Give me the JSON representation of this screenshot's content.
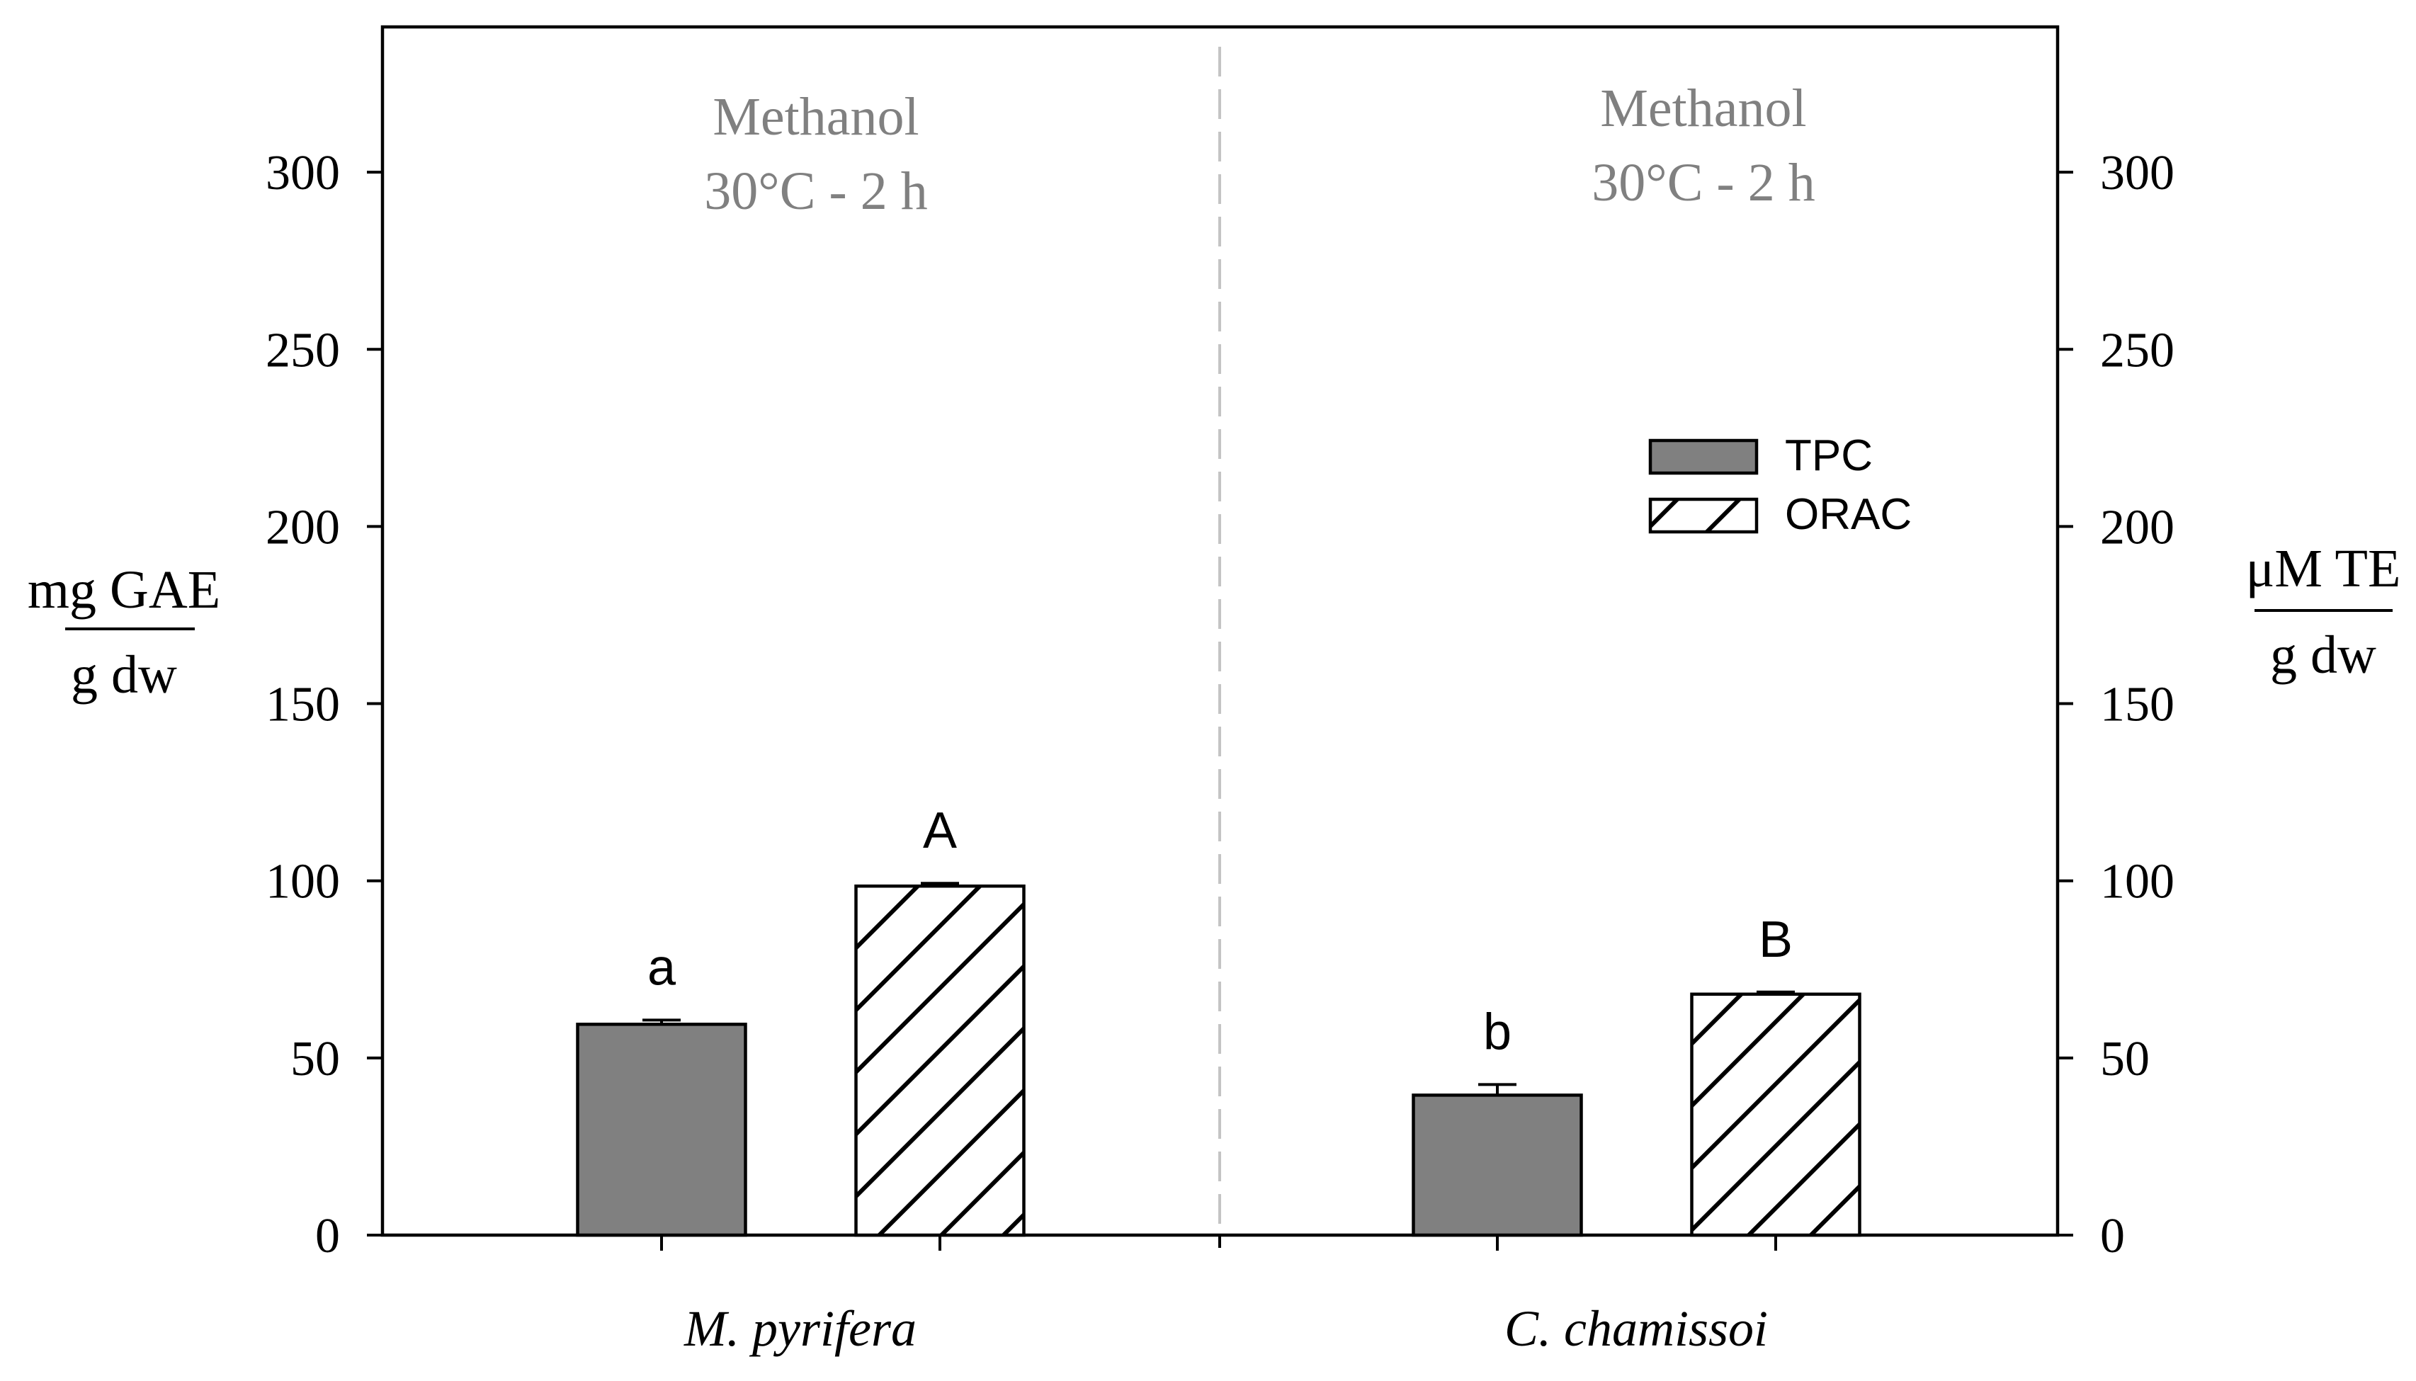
{
  "chart_data": {
    "type": "bar",
    "categories": [
      "M. pyrifera",
      "C. chamissoi"
    ],
    "series": [
      {
        "name": "TPC",
        "values": [
          59.5,
          39.5
        ],
        "errors": [
          1.2,
          3.0
        ],
        "letters": [
          "a",
          "b"
        ],
        "color": "#808080",
        "pattern": "solid"
      },
      {
        "name": "ORAC",
        "values": [
          98.5,
          68.0
        ],
        "errors": [
          0.8,
          0.6
        ],
        "letters": [
          "A",
          "B"
        ],
        "color": "#ffffff",
        "pattern": "hatch"
      }
    ],
    "ylim": [
      0,
      340
    ],
    "yticks": [
      0,
      50,
      100,
      150,
      200,
      250,
      300
    ],
    "y2ticks": [
      0,
      50,
      100,
      150,
      200,
      250,
      300
    ],
    "ylabel": {
      "top": "mg GAE",
      "bottom": "g dw"
    },
    "y2label": {
      "top": "μM TE",
      "bottom": "g dw"
    },
    "panel_labels": [
      {
        "line1": "Methanol",
        "line2": "30°C - 2 h"
      },
      {
        "line1": "Methanol",
        "line2": "30°C - 2 h"
      }
    ],
    "legend": {
      "position": "upper-right of right panel",
      "entries": [
        "TPC",
        "ORAC"
      ]
    },
    "grid": false,
    "annotation_color": "#808080"
  }
}
